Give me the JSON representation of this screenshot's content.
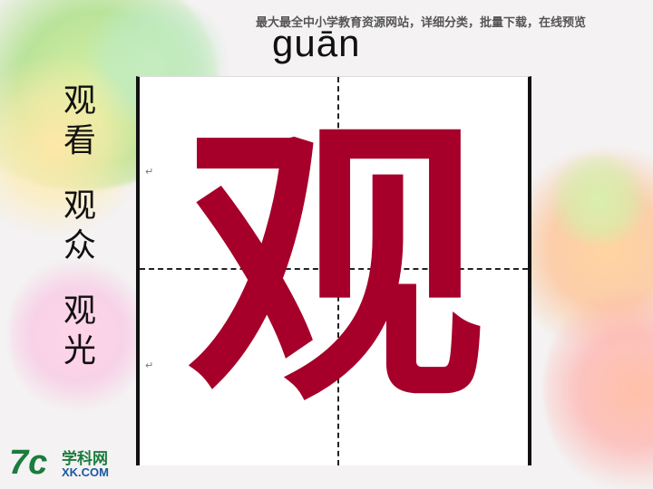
{
  "header": {
    "site_text": "最大最全中小学教育资源网站，详细分类，批量下载，在线预览"
  },
  "character": {
    "pinyin": "guān",
    "glyph": "观",
    "color": "#a6002a"
  },
  "words": [
    {
      "line1": "观",
      "line2": "看"
    },
    {
      "line1": "观",
      "line2": "众"
    },
    {
      "line1": "观",
      "line2": "光"
    }
  ],
  "marks": {
    "return_symbol": "↵"
  },
  "logo": {
    "mark": "7c",
    "chinese": "学科网",
    "english": "XK.COM"
  }
}
